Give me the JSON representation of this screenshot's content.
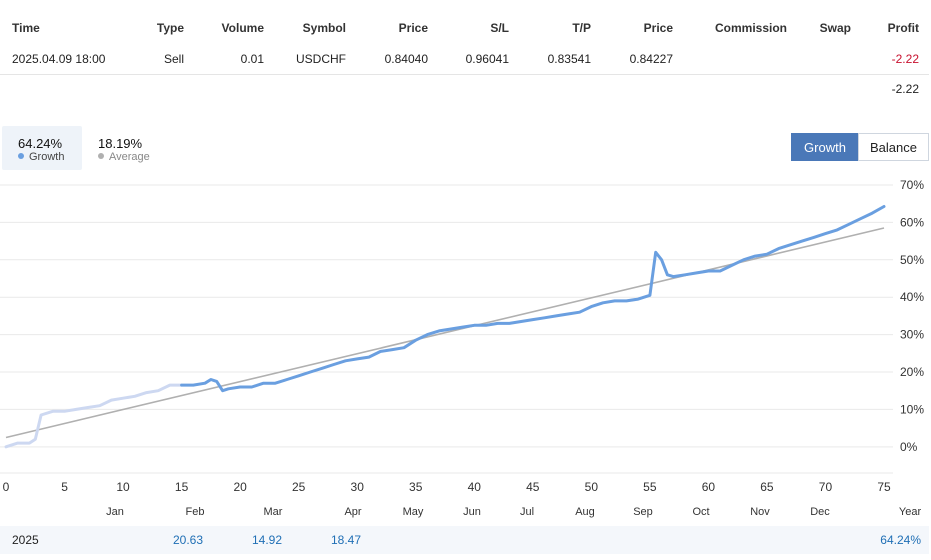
{
  "trade_table": {
    "headers": [
      "Time",
      "Type",
      "Volume",
      "Symbol",
      "Price",
      "S/L",
      "T/P",
      "Price",
      "Commission",
      "Swap",
      "Profit"
    ],
    "row": {
      "time": "2025.04.09 18:00",
      "type": "Sell",
      "volume": "0.01",
      "symbol": "USDCHF",
      "price_open": "0.84040",
      "sl": "0.96041",
      "tp": "0.83541",
      "price_close": "0.84227",
      "commission": "",
      "swap": "",
      "profit": "-2.22"
    },
    "total_profit": "-2.22"
  },
  "summary": {
    "growth_value": "64.24%",
    "growth_label": "Growth",
    "average_value": "18.19%",
    "average_label": "Average"
  },
  "toggle": {
    "growth_label": "Growth",
    "balance_label": "Balance",
    "active": "Growth"
  },
  "colors": {
    "growth_line": "#6a9fe0",
    "growth_line_faded": "#cdd8f1",
    "average_line": "#b0b0b0",
    "accent": "#4a78b8",
    "negative": "#c8102e",
    "positive_link": "#1f6fb5"
  },
  "chart_data": {
    "type": "line",
    "x_ticks": [
      0,
      5,
      10,
      15,
      20,
      25,
      30,
      35,
      40,
      45,
      50,
      55,
      60,
      65,
      70,
      75
    ],
    "xlim": [
      0,
      75
    ],
    "y_ticks": [
      "70%",
      "60%",
      "50%",
      "40%",
      "30%",
      "20%",
      "10%",
      "0%"
    ],
    "ylim": [
      -7,
      70
    ],
    "month_labels": [
      "Jan",
      "Feb",
      "Mar",
      "Apr",
      "May",
      "Jun",
      "Jul",
      "Aug",
      "Sep",
      "Oct",
      "Nov",
      "Dec",
      "Year"
    ],
    "grid": true,
    "series": [
      {
        "name": "Growth",
        "faded_until_x": 15,
        "x": [
          0,
          1,
          2,
          2.5,
          3,
          4,
          5,
          6,
          7,
          8,
          9,
          10,
          11,
          12,
          13,
          14,
          15,
          16,
          17,
          17.5,
          18,
          18.5,
          19,
          20,
          21,
          22,
          23,
          24,
          25,
          26,
          27,
          28,
          29,
          30,
          31,
          32,
          33,
          34,
          35,
          36,
          37,
          38,
          39,
          40,
          41,
          42,
          43,
          44,
          45,
          46,
          47,
          48,
          49,
          50,
          51,
          52,
          53,
          54,
          55,
          55.5,
          56,
          56.5,
          57,
          58,
          59,
          60,
          61,
          62,
          63,
          64,
          65,
          66,
          67,
          68,
          69,
          70,
          71,
          72,
          73,
          74,
          75
        ],
        "y": [
          0,
          1,
          1,
          2,
          8.5,
          9.5,
          9.5,
          10,
          10.5,
          11,
          12.5,
          13,
          13.5,
          14.5,
          15,
          16.5,
          16.5,
          16.5,
          17,
          18,
          17.5,
          15,
          15.5,
          16,
          16,
          17,
          17,
          18,
          19,
          20,
          21,
          22,
          23,
          23.5,
          24,
          25.5,
          26,
          26.5,
          28.5,
          30,
          31,
          31.5,
          32,
          32.5,
          32.5,
          33,
          33,
          33.5,
          34,
          34.5,
          35,
          35.5,
          36,
          37.5,
          38.5,
          39,
          39,
          39.5,
          40.5,
          52,
          50,
          46,
          45.5,
          46,
          46.5,
          47,
          47,
          48.5,
          50,
          51,
          51.5,
          53,
          54,
          55,
          56,
          57,
          58,
          59.5,
          61,
          62.5,
          64.24
        ]
      },
      {
        "name": "Average",
        "x": [
          0,
          75
        ],
        "y": [
          2.5,
          58.5
        ]
      }
    ],
    "year_row": {
      "year": "2025",
      "monthly": [
        "",
        "20.63",
        "14.92",
        "18.47",
        "",
        "",
        "",
        "",
        "",
        "",
        "",
        ""
      ],
      "total": "64.24%"
    }
  }
}
